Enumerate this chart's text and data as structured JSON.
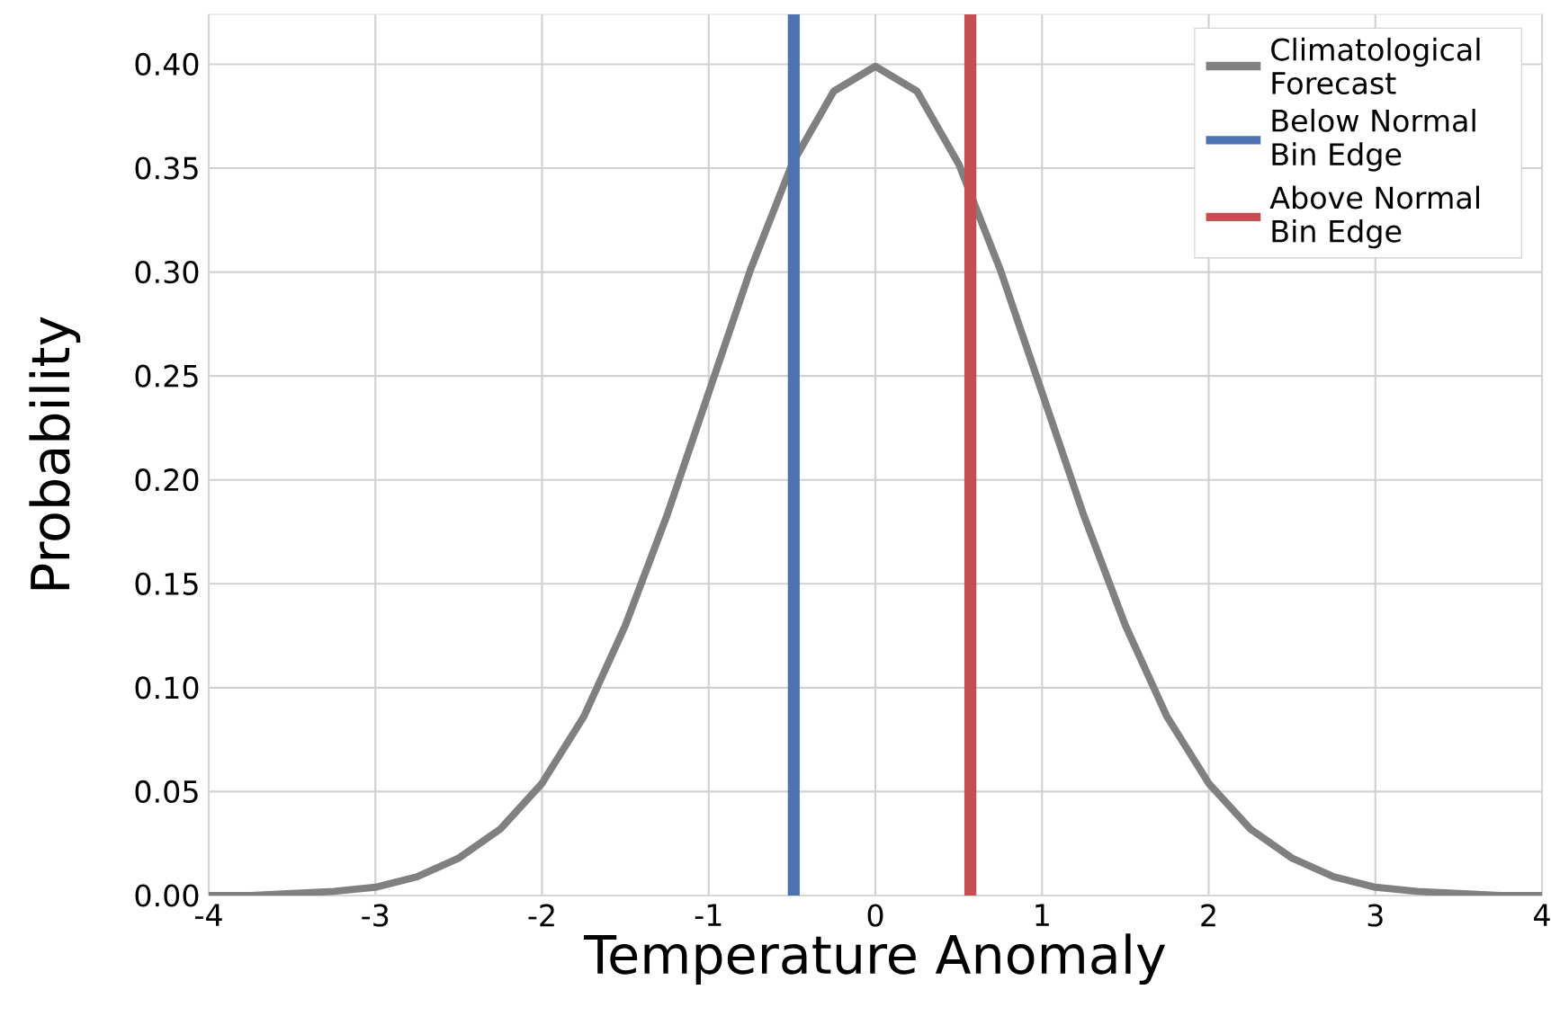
{
  "chart_data": {
    "type": "line",
    "xlabel": "Temperature Anomaly",
    "ylabel": "Probability",
    "xlim": [
      -4,
      4
    ],
    "xticks": [
      -4,
      -3,
      -2,
      -1,
      0,
      1,
      2,
      3,
      4
    ],
    "ylim": [
      0,
      0.424
    ],
    "yticks": [
      {
        "value": 0,
        "label": "0.00"
      },
      {
        "value": 0.05,
        "label": "0.05"
      },
      {
        "value": 0.1,
        "label": "0.10"
      },
      {
        "value": 0.15,
        "label": "0.15"
      },
      {
        "value": 0.2,
        "label": "0.20"
      },
      {
        "value": 0.25,
        "label": "0.25"
      },
      {
        "value": 0.3,
        "label": "0.30"
      },
      {
        "value": 0.35,
        "label": "0.35"
      },
      {
        "value": 0.4,
        "label": "0.40"
      }
    ],
    "grid": true,
    "legend": "top right",
    "line_style": "solid",
    "series": [
      {
        "name": "Climatological Forecast",
        "color": "#808080",
        "x": [
          -4,
          -3.75,
          -3.5,
          -3.25,
          -3,
          -2.75,
          -2.5,
          -2.25,
          -2,
          -1.75,
          -1.5,
          -1.25,
          -1,
          -0.75,
          -0.5,
          -0.25,
          0,
          0.25,
          0.5,
          0.75,
          1,
          1.25,
          1.5,
          1.75,
          2,
          2.25,
          2.5,
          2.75,
          3,
          3.25,
          3.5,
          3.75,
          4
        ],
        "values": [
          0.0,
          0.0,
          0.001,
          0.002,
          0.004,
          0.009,
          0.018,
          0.032,
          0.054,
          0.086,
          0.13,
          0.183,
          0.242,
          0.301,
          0.352,
          0.387,
          0.399,
          0.387,
          0.352,
          0.301,
          0.242,
          0.183,
          0.13,
          0.086,
          0.054,
          0.032,
          0.018,
          0.009,
          0.004,
          0.002,
          0.001,
          0.0,
          0.0
        ]
      },
      {
        "name": "Below Normal Bin Edge",
        "color": "#4c72b0",
        "x": [
          -0.49,
          -0.49
        ],
        "values": [
          0,
          0.424
        ]
      },
      {
        "name": "Above Normal Bin Edge",
        "color": "#c44e52",
        "x": [
          0.57,
          0.57
        ],
        "values": [
          0,
          0.424
        ]
      }
    ]
  }
}
